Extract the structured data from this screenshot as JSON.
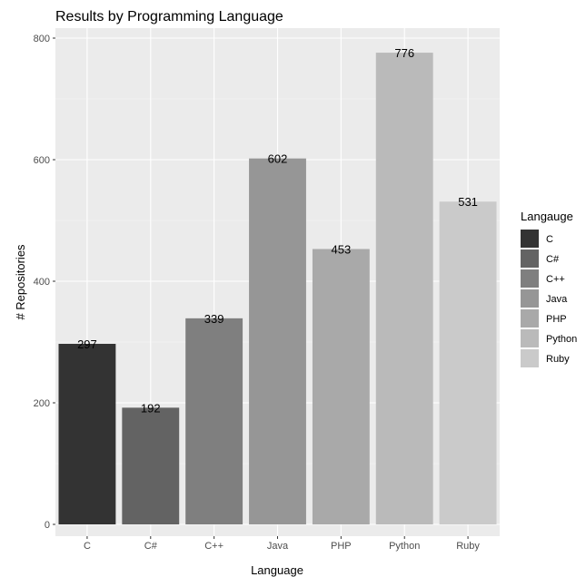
{
  "chart_data": {
    "type": "bar",
    "title": "Results by Programming Language",
    "xlabel": "Language",
    "ylabel": "# Repositories",
    "categories": [
      "C",
      "C#",
      "C++",
      "Java",
      "PHP",
      "Python",
      "Ruby"
    ],
    "values": [
      297,
      192,
      339,
      602,
      453,
      776,
      531
    ],
    "value_labels": [
      "297",
      "192",
      "339",
      "602",
      "453",
      "776",
      "531"
    ],
    "colors": [
      "#333333",
      "#636363",
      "#7f7f7f",
      "#969696",
      "#a9a9a9",
      "#bababa",
      "#cacaca"
    ],
    "ylim": [
      0,
      800
    ],
    "yticks": [
      0,
      200,
      400,
      600,
      800
    ],
    "ytick_labels": [
      "0",
      "200",
      "400",
      "600",
      "800"
    ],
    "grid": true,
    "panel_background": "#ebebeb",
    "legend": {
      "title": "Langauge",
      "position": "right",
      "entries": [
        "C",
        "C#",
        "C++",
        "Java",
        "PHP",
        "Python",
        "Ruby"
      ]
    }
  }
}
